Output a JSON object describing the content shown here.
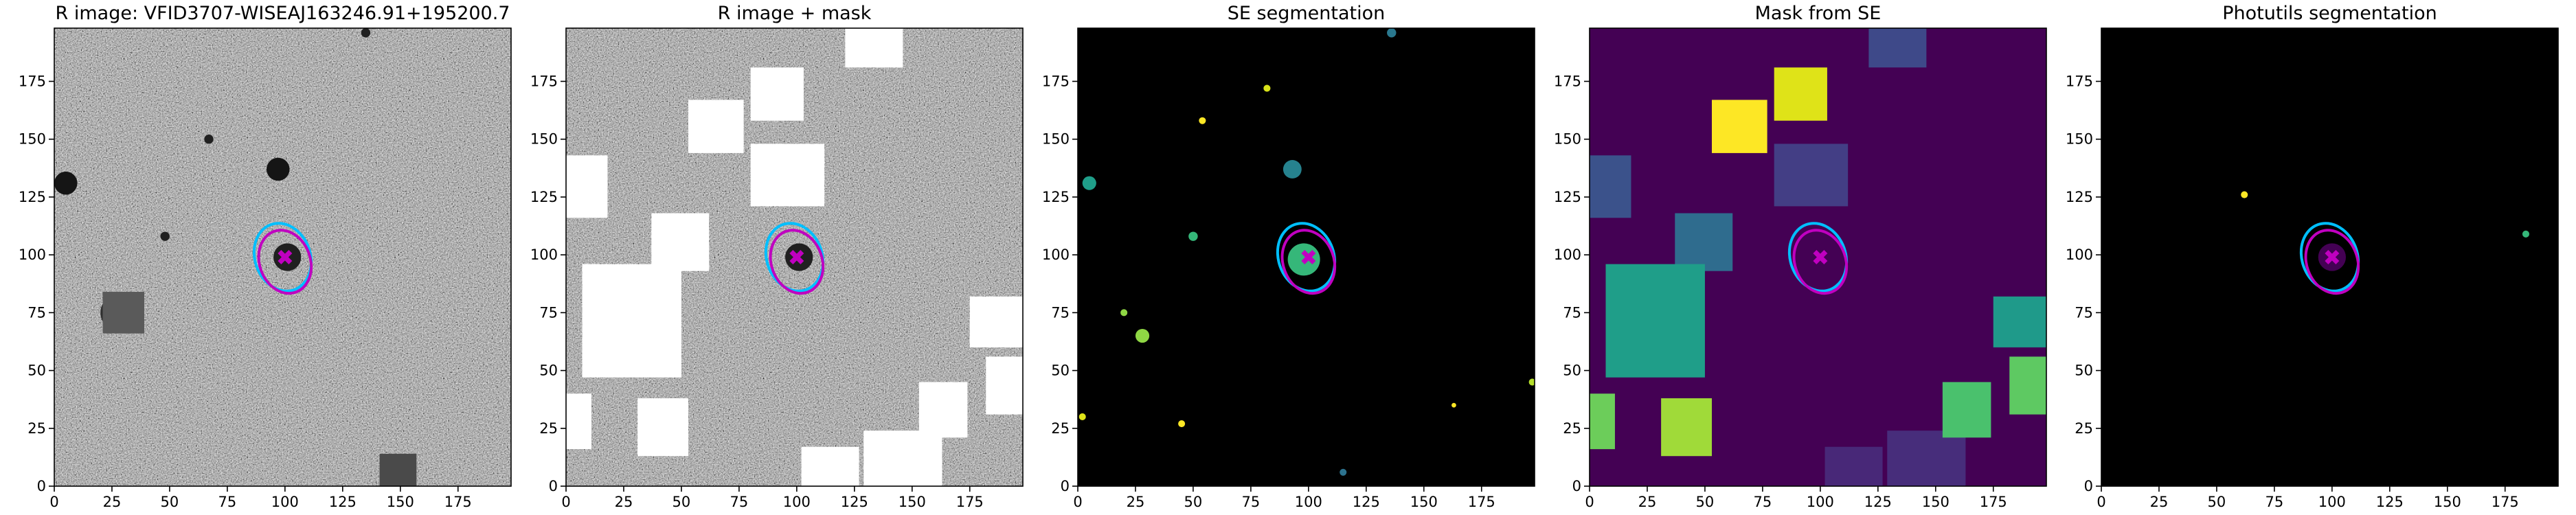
{
  "chart_data": [
    {
      "type": "image",
      "title": "R image: VFID3707-WISEAJ163246.91+195200.7",
      "background": "#7a7a7a",
      "noise": true,
      "xlim": [
        0,
        198
      ],
      "ylim": [
        0,
        198
      ],
      "xticks": [
        0,
        25,
        50,
        75,
        100,
        125,
        150,
        175
      ],
      "yticks": [
        0,
        25,
        50,
        75,
        100,
        125,
        150,
        175
      ],
      "regions": [
        {
          "x0": 21,
          "x1": 39,
          "y0": 66,
          "y1": 84,
          "color": "#5a5a5a"
        },
        {
          "x0": 141,
          "x1": 157,
          "y0": 0,
          "y1": 14,
          "color": "#4a4a4a"
        }
      ],
      "blobs": [
        {
          "x": 5,
          "y": 131,
          "r": 5,
          "color": "#151515"
        },
        {
          "x": 97,
          "y": 137,
          "r": 5,
          "color": "#151515"
        },
        {
          "x": 28,
          "y": 75,
          "r": 8,
          "color": "#303030"
        },
        {
          "x": 67,
          "y": 150,
          "r": 2,
          "color": "#202020"
        },
        {
          "x": 48,
          "y": 108,
          "r": 2,
          "color": "#202020"
        },
        {
          "x": 135,
          "y": 196,
          "r": 2,
          "color": "#202020"
        },
        {
          "x": 101,
          "y": 99,
          "r": 6,
          "color": "#202020"
        }
      ],
      "ellipses": [
        {
          "cx": 99,
          "cy": 99,
          "rx": 12,
          "ry": 15,
          "angle": -20,
          "color": "#00bfff"
        },
        {
          "cx": 100,
          "cy": 97,
          "rx": 11,
          "ry": 14,
          "angle": -20,
          "color": "#c000c0"
        }
      ],
      "marker": {
        "x": 100,
        "y": 99,
        "color": "#c000c0"
      }
    },
    {
      "type": "image",
      "title": "R image + mask",
      "background": "#7a7a7a",
      "noise": true,
      "xlim": [
        0,
        198
      ],
      "ylim": [
        0,
        198
      ],
      "xticks": [
        0,
        25,
        50,
        75,
        100,
        125,
        150,
        175
      ],
      "yticks": [
        0,
        25,
        50,
        75,
        100,
        125,
        150,
        175
      ],
      "regions": [
        {
          "x0": 53,
          "x1": 77,
          "y0": 144,
          "y1": 167,
          "color": "#ffffff"
        },
        {
          "x0": 80,
          "x1": 103,
          "y0": 158,
          "y1": 181,
          "color": "#ffffff"
        },
        {
          "x0": 80,
          "x1": 112,
          "y0": 121,
          "y1": 148,
          "color": "#ffffff"
        },
        {
          "x0": 121,
          "x1": 146,
          "y0": 181,
          "y1": 198,
          "color": "#ffffff"
        },
        {
          "x0": 0,
          "x1": 18,
          "y0": 116,
          "y1": 143,
          "color": "#ffffff"
        },
        {
          "x0": 37,
          "x1": 62,
          "y0": 93,
          "y1": 118,
          "color": "#ffffff"
        },
        {
          "x0": 7,
          "x1": 50,
          "y0": 47,
          "y1": 96,
          "color": "#ffffff"
        },
        {
          "x0": 0,
          "x1": 11,
          "y0": 16,
          "y1": 40,
          "color": "#ffffff"
        },
        {
          "x0": 31,
          "x1": 53,
          "y0": 13,
          "y1": 38,
          "color": "#ffffff"
        },
        {
          "x0": 102,
          "x1": 127,
          "y0": 0,
          "y1": 17,
          "color": "#ffffff"
        },
        {
          "x0": 129,
          "x1": 163,
          "y0": 0,
          "y1": 24,
          "color": "#ffffff"
        },
        {
          "x0": 153,
          "x1": 174,
          "y0": 21,
          "y1": 45,
          "color": "#ffffff"
        },
        {
          "x0": 175,
          "x1": 198,
          "y0": 60,
          "y1": 82,
          "color": "#ffffff"
        },
        {
          "x0": 182,
          "x1": 198,
          "y0": 31,
          "y1": 56,
          "color": "#ffffff"
        }
      ],
      "blobs": [
        {
          "x": 101,
          "y": 99,
          "r": 6,
          "color": "#202020"
        }
      ],
      "ellipses": [
        {
          "cx": 99,
          "cy": 99,
          "rx": 12,
          "ry": 15,
          "angle": -20,
          "color": "#00bfff"
        },
        {
          "cx": 100,
          "cy": 97,
          "rx": 11,
          "ry": 14,
          "angle": -20,
          "color": "#c000c0"
        }
      ],
      "marker": {
        "x": 100,
        "y": 99,
        "color": "#c000c0"
      }
    },
    {
      "type": "image",
      "title": "SE segmentation",
      "background": "#000000",
      "noise": false,
      "xlim": [
        0,
        198
      ],
      "ylim": [
        0,
        198
      ],
      "xticks": [
        0,
        25,
        50,
        75,
        100,
        125,
        150,
        175
      ],
      "yticks": [
        0,
        25,
        50,
        75,
        100,
        125,
        150,
        175
      ],
      "regions": [],
      "blobs": [
        {
          "x": 5,
          "y": 131,
          "r": 3,
          "color": "#1f9e89"
        },
        {
          "x": 54,
          "y": 158,
          "r": 1.5,
          "color": "#fde725"
        },
        {
          "x": 82,
          "y": 172,
          "r": 1.5,
          "color": "#d8e219"
        },
        {
          "x": 136,
          "y": 196,
          "r": 2,
          "color": "#2a788e"
        },
        {
          "x": 93,
          "y": 137,
          "r": 4,
          "color": "#26828e"
        },
        {
          "x": 50,
          "y": 108,
          "r": 2,
          "color": "#35b779"
        },
        {
          "x": 98,
          "y": 98,
          "r": 7,
          "color": "#35b779"
        },
        {
          "x": 28,
          "y": 65,
          "r": 3,
          "color": "#8fd744"
        },
        {
          "x": 20,
          "y": 75,
          "r": 1.5,
          "color": "#8fd744"
        },
        {
          "x": 45,
          "y": 27,
          "r": 1.5,
          "color": "#fde725"
        },
        {
          "x": 2,
          "y": 30,
          "r": 1.5,
          "color": "#dfe318"
        },
        {
          "x": 197,
          "y": 45,
          "r": 1.5,
          "color": "#b5de2b"
        },
        {
          "x": 115,
          "y": 6,
          "r": 1.5,
          "color": "#2c728e"
        },
        {
          "x": 163,
          "y": 35,
          "r": 1,
          "color": "#fde725"
        }
      ],
      "ellipses": [
        {
          "cx": 99,
          "cy": 99,
          "rx": 12,
          "ry": 15,
          "angle": -20,
          "color": "#00bfff"
        },
        {
          "cx": 100,
          "cy": 97,
          "rx": 11,
          "ry": 14,
          "angle": -20,
          "color": "#c000c0"
        }
      ],
      "marker": {
        "x": 100,
        "y": 99,
        "color": "#c000c0"
      }
    },
    {
      "type": "image",
      "title": "Mask from SE",
      "background": "#440154",
      "noise": false,
      "xlim": [
        0,
        198
      ],
      "ylim": [
        0,
        198
      ],
      "xticks": [
        0,
        25,
        50,
        75,
        100,
        125,
        150,
        175
      ],
      "yticks": [
        0,
        25,
        50,
        75,
        100,
        125,
        150,
        175
      ],
      "regions": [
        {
          "x0": 53,
          "x1": 77,
          "y0": 144,
          "y1": 167,
          "color": "#fde725"
        },
        {
          "x0": 80,
          "x1": 103,
          "y0": 158,
          "y1": 181,
          "color": "#dfe318"
        },
        {
          "x0": 80,
          "x1": 112,
          "y0": 121,
          "y1": 148,
          "color": "#433e85"
        },
        {
          "x0": 121,
          "x1": 146,
          "y0": 181,
          "y1": 198,
          "color": "#3e4989"
        },
        {
          "x0": 0,
          "x1": 18,
          "y0": 116,
          "y1": 143,
          "color": "#3b528b"
        },
        {
          "x0": 37,
          "x1": 62,
          "y0": 93,
          "y1": 118,
          "color": "#2f6c8e"
        },
        {
          "x0": 7,
          "x1": 50,
          "y0": 47,
          "y1": 96,
          "color": "#1f9e89"
        },
        {
          "x0": 0,
          "x1": 11,
          "y0": 16,
          "y1": 40,
          "color": "#6ccd5a"
        },
        {
          "x0": 31,
          "x1": 53,
          "y0": 13,
          "y1": 38,
          "color": "#a0da39"
        },
        {
          "x0": 102,
          "x1": 127,
          "y0": 0,
          "y1": 17,
          "color": "#482878"
        },
        {
          "x0": 129,
          "x1": 163,
          "y0": 0,
          "y1": 24,
          "color": "#472d7b"
        },
        {
          "x0": 153,
          "x1": 174,
          "y0": 21,
          "y1": 45,
          "color": "#4ac16d"
        },
        {
          "x0": 175,
          "x1": 198,
          "y0": 60,
          "y1": 82,
          "color": "#1f9a8a"
        },
        {
          "x0": 182,
          "x1": 198,
          "y0": 31,
          "y1": 56,
          "color": "#5ec962"
        }
      ],
      "blobs": [],
      "ellipses": [
        {
          "cx": 99,
          "cy": 99,
          "rx": 12,
          "ry": 15,
          "angle": -20,
          "color": "#00bfff"
        },
        {
          "cx": 100,
          "cy": 97,
          "rx": 11,
          "ry": 14,
          "angle": -20,
          "color": "#c000c0"
        }
      ],
      "marker": {
        "x": 100,
        "y": 99,
        "color": "#c000c0"
      }
    },
    {
      "type": "image",
      "title": "Photutils segmentation",
      "background": "#000000",
      "noise": false,
      "xlim": [
        0,
        198
      ],
      "ylim": [
        0,
        198
      ],
      "xticks": [
        0,
        25,
        50,
        75,
        100,
        125,
        150,
        175
      ],
      "yticks": [
        0,
        25,
        50,
        75,
        100,
        125,
        150,
        175
      ],
      "regions": [],
      "blobs": [
        {
          "x": 62,
          "y": 126,
          "r": 1.5,
          "color": "#fde725"
        },
        {
          "x": 184,
          "y": 109,
          "r": 1.5,
          "color": "#35b779"
        },
        {
          "x": 100,
          "y": 99,
          "r": 6,
          "color": "#440154"
        }
      ],
      "ellipses": [
        {
          "cx": 99,
          "cy": 99,
          "rx": 12,
          "ry": 15,
          "angle": -20,
          "color": "#00bfff"
        },
        {
          "cx": 100,
          "cy": 97,
          "rx": 11,
          "ry": 14,
          "angle": -20,
          "color": "#c000c0"
        }
      ],
      "marker": {
        "x": 100,
        "y": 99,
        "color": "#c000c0"
      }
    }
  ]
}
